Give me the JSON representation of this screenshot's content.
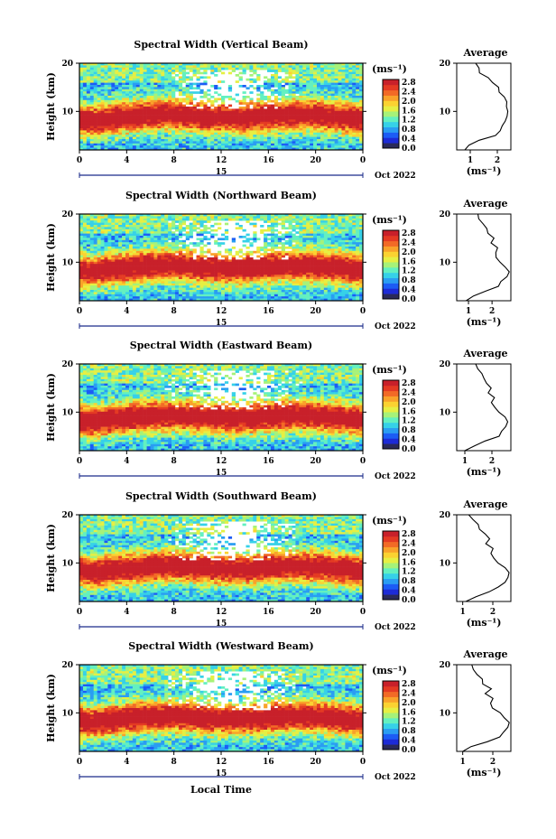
{
  "colorscale": [
    "#2a2a5a",
    "#1d2bd6",
    "#1c5cf5",
    "#2a9df2",
    "#36d1e8",
    "#63f0c0",
    "#a6f279",
    "#e6ef43",
    "#fbd231",
    "#f9a22a",
    "#f26a26",
    "#e43a23",
    "#c8202a"
  ],
  "unit_label": "(ms⁻¹)",
  "colorbar_ticks": [
    "2.8",
    "2.4",
    "2.0",
    "1.6",
    "1.2",
    "0.8",
    "0.4",
    "0.0"
  ],
  "x_ticks": [
    "0",
    "4",
    "8",
    "12",
    "16",
    "20",
    "0"
  ],
  "date_center": "15",
  "date_right": "Oct 2022",
  "xlabel": "Local Time",
  "ylabel": "Height (km)",
  "y_ticks": [
    "10",
    "20"
  ],
  "avg_title": "Average",
  "avg_xlabel": "(ms⁻¹)",
  "chart_data": [
    {
      "type": "heatmap",
      "title": "Spectral Width (Vertical Beam)",
      "xlabel": "Local Time",
      "ylabel": "Height (km)",
      "xlim": [
        0,
        24
      ],
      "ylim": [
        2,
        20
      ],
      "clim": [
        0,
        3.0
      ],
      "profile": {
        "title": "Average",
        "xlabel": "(ms⁻¹)",
        "ticks": [
          "1",
          "2"
        ],
        "xlim": [
          0.5,
          2.5
        ],
        "heights": [
          2,
          3,
          4,
          5,
          6,
          7,
          8,
          9,
          10,
          11,
          12,
          13,
          14,
          15,
          16,
          17,
          18,
          19,
          20
        ],
        "values": [
          0.8,
          1.0,
          1.3,
          1.9,
          2.1,
          2.2,
          2.3,
          2.3,
          2.4,
          2.3,
          2.4,
          2.2,
          2.1,
          2.0,
          1.8,
          1.6,
          1.4,
          1.3,
          1.2
        ]
      }
    },
    {
      "type": "heatmap",
      "title": "Spectral Width (Northward Beam)",
      "xlabel": "Local Time",
      "ylabel": "Height (km)",
      "xlim": [
        0,
        24
      ],
      "ylim": [
        2,
        20
      ],
      "clim": [
        0,
        3.0
      ],
      "profile": {
        "title": "Average",
        "xlabel": "(ms⁻¹)",
        "ticks": [
          "1",
          "2"
        ],
        "xlim": [
          0.5,
          2.8
        ],
        "heights": [
          2,
          3,
          4,
          5,
          6,
          7,
          8,
          9,
          10,
          11,
          12,
          13,
          14,
          15,
          16,
          17,
          18,
          19,
          20
        ],
        "values": [
          0.9,
          1.2,
          1.8,
          2.2,
          2.4,
          2.6,
          2.7,
          2.6,
          2.4,
          2.2,
          2.1,
          2.2,
          2.0,
          2.1,
          1.9,
          1.8,
          1.6,
          1.5,
          1.4
        ]
      }
    },
    {
      "type": "heatmap",
      "title": "Spectral Width (Eastward Beam)",
      "xlabel": "Local Time",
      "ylabel": "Height (km)",
      "xlim": [
        0,
        24
      ],
      "ylim": [
        2,
        20
      ],
      "clim": [
        0,
        3.0
      ],
      "profile": {
        "title": "Average",
        "xlabel": "(ms⁻¹)",
        "ticks": [
          "1",
          "2"
        ],
        "xlim": [
          0.7,
          2.7
        ],
        "heights": [
          2,
          3,
          4,
          5,
          6,
          7,
          8,
          9,
          10,
          11,
          12,
          13,
          14,
          15,
          16,
          17,
          18,
          19,
          20
        ],
        "values": [
          1.0,
          1.3,
          1.8,
          2.2,
          2.4,
          2.5,
          2.6,
          2.5,
          2.3,
          2.1,
          2.0,
          2.1,
          1.9,
          2.0,
          1.8,
          1.7,
          1.6,
          1.5,
          1.4
        ]
      }
    },
    {
      "type": "heatmap",
      "title": "Spectral Width (Southward Beam)",
      "xlabel": "Local Time",
      "ylabel": "Height (km)",
      "xlim": [
        0,
        24
      ],
      "ylim": [
        2,
        20
      ],
      "clim": [
        0,
        3.0
      ],
      "profile": {
        "title": "Average",
        "xlabel": "(ms⁻¹)",
        "ticks": [
          "1",
          "2"
        ],
        "xlim": [
          0.8,
          2.6
        ],
        "heights": [
          2,
          3,
          4,
          5,
          6,
          7,
          8,
          9,
          10,
          11,
          12,
          13,
          14,
          15,
          16,
          17,
          18,
          19,
          20
        ],
        "values": [
          1.1,
          1.4,
          1.9,
          2.2,
          2.4,
          2.5,
          2.5,
          2.4,
          2.2,
          2.0,
          1.9,
          2.0,
          1.8,
          1.9,
          1.7,
          1.6,
          1.5,
          1.3,
          1.2
        ]
      }
    },
    {
      "type": "heatmap",
      "title": "Spectral Width (Westward Beam)",
      "xlabel": "Local Time",
      "ylabel": "Height (km)",
      "xlim": [
        0,
        24
      ],
      "ylim": [
        2,
        20
      ],
      "clim": [
        0,
        3.0
      ],
      "profile": {
        "title": "Average",
        "xlabel": "(ms⁻¹)",
        "ticks": [
          "1",
          "2"
        ],
        "xlim": [
          0.8,
          2.6
        ],
        "heights": [
          2,
          3,
          4,
          5,
          6,
          7,
          8,
          9,
          10,
          11,
          12,
          13,
          14,
          15,
          16,
          17,
          18,
          19,
          20
        ],
        "values": [
          1.0,
          1.3,
          1.8,
          2.2,
          2.4,
          2.5,
          2.5,
          2.4,
          2.2,
          2.0,
          1.9,
          2.0,
          1.8,
          1.9,
          1.7,
          1.6,
          1.5,
          1.4,
          1.3
        ]
      }
    }
  ]
}
